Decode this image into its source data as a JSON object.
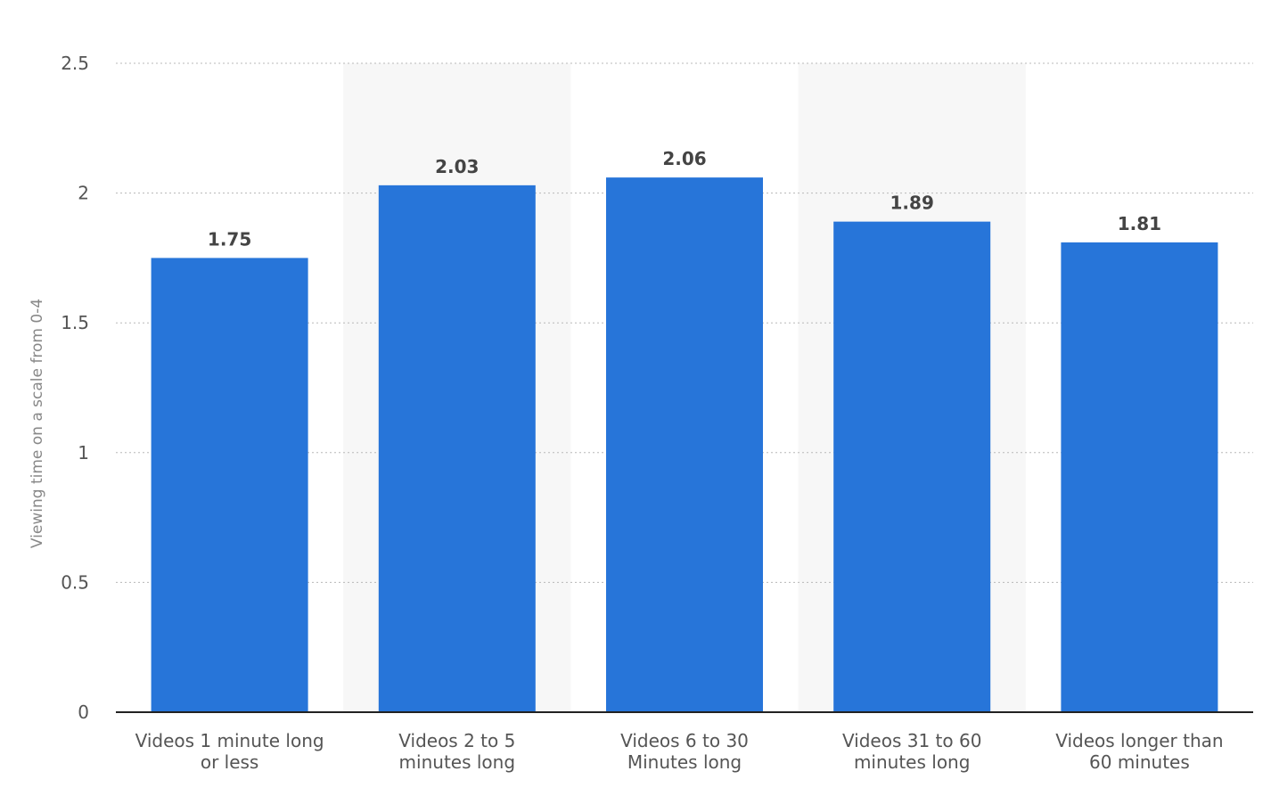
{
  "chart_data": {
    "type": "bar",
    "title": "",
    "xlabel": "",
    "ylabel": "Viewing time on a scale from 0-4",
    "categories": [
      [
        "Videos 1 minute long",
        "or less"
      ],
      [
        "Videos 2 to 5",
        "minutes long"
      ],
      [
        "Videos 6 to 30",
        "Minutes long"
      ],
      [
        "Videos 31 to 60",
        "minutes long"
      ],
      [
        "Videos longer than",
        "60 minutes"
      ]
    ],
    "values": [
      1.75,
      2.03,
      2.06,
      1.89,
      1.81
    ],
    "value_labels": [
      "1.75",
      "2.03",
      "2.06",
      "1.89",
      "1.81"
    ],
    "ylim": [
      0,
      2.5
    ],
    "yticks": [
      0,
      0.5,
      1,
      1.5,
      2,
      2.5
    ],
    "ytick_labels": [
      "0",
      "0.5",
      "1",
      "1.5",
      "2",
      "2.5"
    ],
    "grid": true,
    "legend": "none",
    "colors": {
      "bar": "#2775d9",
      "alt_band": "#f7f7f7",
      "grid": "#b8b8b8",
      "axis": "#222222",
      "tick_text": "#555555",
      "value_text": "#444444",
      "ylabel_text": "#888888"
    }
  }
}
